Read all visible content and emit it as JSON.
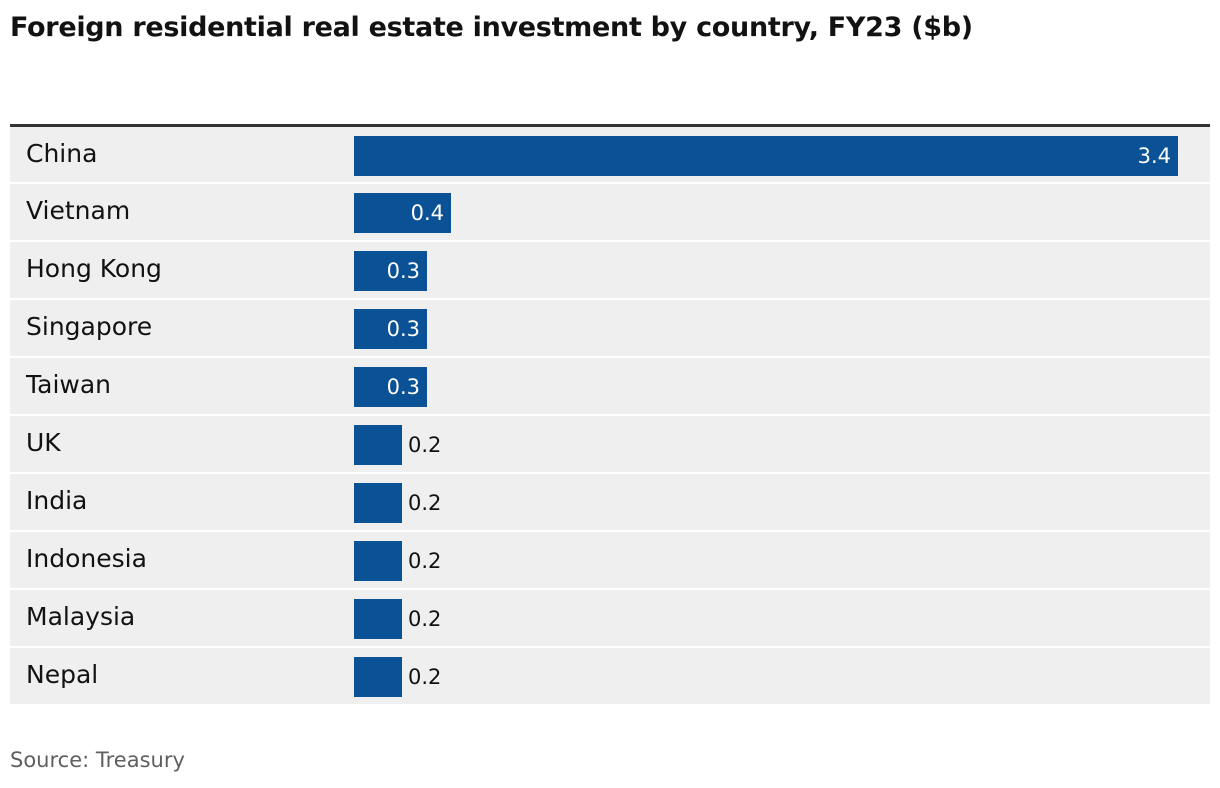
{
  "chart_data": {
    "type": "bar",
    "orientation": "horizontal",
    "title": "Foreign residential real estate investment by country, FY23 ($b)",
    "categories": [
      "China",
      "Vietnam",
      "Hong Kong",
      "Singapore",
      "Taiwan",
      "UK",
      "India",
      "Indonesia",
      "Malaysia",
      "Nepal"
    ],
    "values": [
      3.4,
      0.4,
      0.3,
      0.3,
      0.3,
      0.2,
      0.2,
      0.2,
      0.2,
      0.2
    ],
    "value_labels": [
      "3.4",
      "0.4",
      "0.3",
      "0.3",
      "0.3",
      "0.2",
      "0.2",
      "0.2",
      "0.2",
      "0.2"
    ],
    "xlim": [
      0,
      3.4
    ],
    "grid": false,
    "legend": "none",
    "source": "Source: Treasury"
  },
  "colors": {
    "bar": "#0a5196",
    "row_background": "#efefef",
    "title": "#121212",
    "source": "#5f5f5f"
  }
}
